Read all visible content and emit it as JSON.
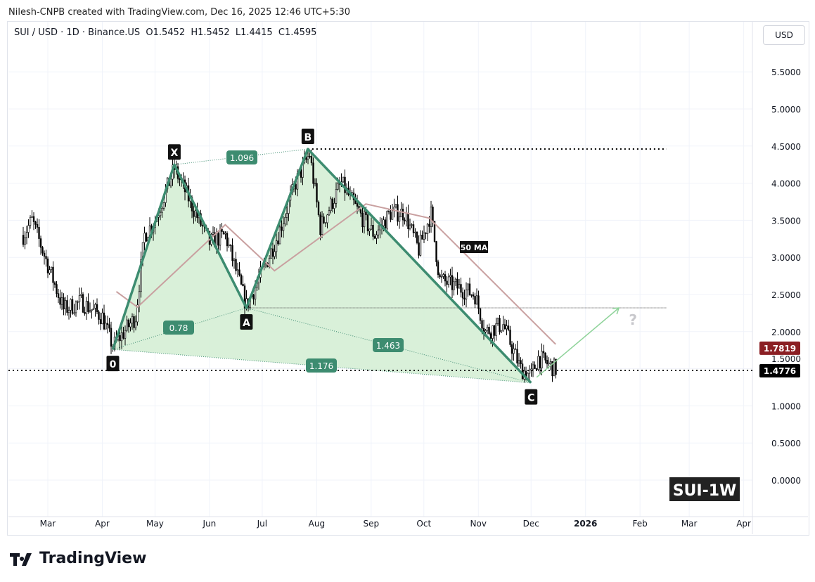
{
  "header": {
    "credit": "Nilesh-CNPB created with TradingView.com, Dec 16, 2025 12:46 UTC+5:30",
    "symbol_line": "SUI / USD · 1D · Binance.US  O1.5452  H1.5452  L1.4415  C1.4595",
    "currency_button": "USD"
  },
  "logo": {
    "text": "TradingView",
    "icon": "tradingview-logo-icon"
  },
  "chart_data": {
    "type": "candlestick",
    "symbol": "SUI / USD",
    "interval": "1D",
    "exchange": "Binance.US",
    "ohlc_last": {
      "open": 1.5452,
      "high": 1.5452,
      "low": 1.4415,
      "close": 1.4595
    },
    "y_ticks": [
      "0.0000",
      "0.5000",
      "1.0000",
      "1.5000",
      "2.0000",
      "2.5000",
      "3.0000",
      "3.5000",
      "4.0000",
      "4.5000",
      "5.0000",
      "5.5000"
    ],
    "ylim": [
      -0.5,
      6.2
    ],
    "x_ticks": [
      {
        "label": "Mar",
        "date": "2025-03-01"
      },
      {
        "label": "Apr",
        "date": "2025-04-01"
      },
      {
        "label": "May",
        "date": "2025-05-01"
      },
      {
        "label": "Jun",
        "date": "2025-06-01"
      },
      {
        "label": "Jul",
        "date": "2025-07-01"
      },
      {
        "label": "Aug",
        "date": "2025-08-01"
      },
      {
        "label": "Sep",
        "date": "2025-09-01"
      },
      {
        "label": "Oct",
        "date": "2025-10-01"
      },
      {
        "label": "Nov",
        "date": "2025-11-01"
      },
      {
        "label": "Dec",
        "date": "2025-12-01"
      },
      {
        "label": "2026",
        "date": "2026-01-01"
      },
      {
        "label": "Feb",
        "date": "2026-02-01"
      },
      {
        "label": "Mar",
        "date": "2026-03-01"
      },
      {
        "label": "Apr",
        "date": "2026-04-01"
      }
    ],
    "price_path": [
      [
        "2025-02-15",
        3.3
      ],
      [
        "2025-02-20",
        3.5
      ],
      [
        "2025-03-01",
        2.9
      ],
      [
        "2025-03-10",
        2.3
      ],
      [
        "2025-03-20",
        2.4
      ],
      [
        "2025-04-01",
        2.2
      ],
      [
        "2025-04-07",
        1.8
      ],
      [
        "2025-04-20",
        2.2
      ],
      [
        "2025-04-25",
        3.3
      ],
      [
        "2025-05-01",
        3.5
      ],
      [
        "2025-05-12",
        4.2
      ],
      [
        "2025-05-20",
        3.8
      ],
      [
        "2025-06-01",
        3.2
      ],
      [
        "2025-06-10",
        3.3
      ],
      [
        "2025-06-22",
        2.35
      ],
      [
        "2025-07-01",
        2.8
      ],
      [
        "2025-07-10",
        3.3
      ],
      [
        "2025-07-20",
        4.0
      ],
      [
        "2025-07-28",
        4.4
      ],
      [
        "2025-08-03",
        3.4
      ],
      [
        "2025-08-15",
        4.0
      ],
      [
        "2025-08-25",
        3.6
      ],
      [
        "2025-09-03",
        3.3
      ],
      [
        "2025-09-12",
        3.6
      ],
      [
        "2025-09-20",
        3.6
      ],
      [
        "2025-09-28",
        3.1
      ],
      [
        "2025-10-05",
        3.6
      ],
      [
        "2025-10-10",
        2.7
      ],
      [
        "2025-10-20",
        2.6
      ],
      [
        "2025-10-30",
        2.5
      ],
      [
        "2025-11-05",
        2.0
      ],
      [
        "2025-11-15",
        2.1
      ],
      [
        "2025-11-25",
        1.5
      ],
      [
        "2025-12-01",
        1.4
      ],
      [
        "2025-12-05",
        1.65
      ],
      [
        "2025-12-16",
        1.48
      ]
    ],
    "ma50": {
      "label": "50 MA",
      "value": "1.7819",
      "color": "#8b1f24",
      "line_color": "#c9a0a0",
      "points": [
        [
          "2025-04-09",
          2.54
        ],
        [
          "2025-04-21",
          2.33
        ],
        [
          "2025-06-10",
          3.44
        ],
        [
          "2025-07-08",
          2.82
        ],
        [
          "2025-08-29",
          3.72
        ],
        [
          "2025-10-04",
          3.53
        ],
        [
          "2025-12-15",
          1.83
        ]
      ]
    },
    "last_price": {
      "value": "1.4776",
      "color": "#000000"
    },
    "pattern": {
      "color": "#3d8c70",
      "fill": "#d5eed5",
      "points": [
        {
          "label": "0",
          "date": "2025-04-07",
          "price": 1.76
        },
        {
          "label": "X",
          "date": "2025-05-12",
          "price": 4.25
        },
        {
          "label": "A",
          "date": "2025-06-22",
          "price": 2.32
        },
        {
          "label": "B",
          "date": "2025-07-27",
          "price": 4.46
        },
        {
          "label": "C",
          "date": "2025-12-01",
          "price": 1.31
        }
      ],
      "ratios": [
        "1.096",
        "0.78",
        "1.463",
        "1.176"
      ],
      "target": {
        "date": "2026-01-20",
        "price": 2.32,
        "label": "?"
      }
    },
    "watermark": "SUI-1W"
  }
}
